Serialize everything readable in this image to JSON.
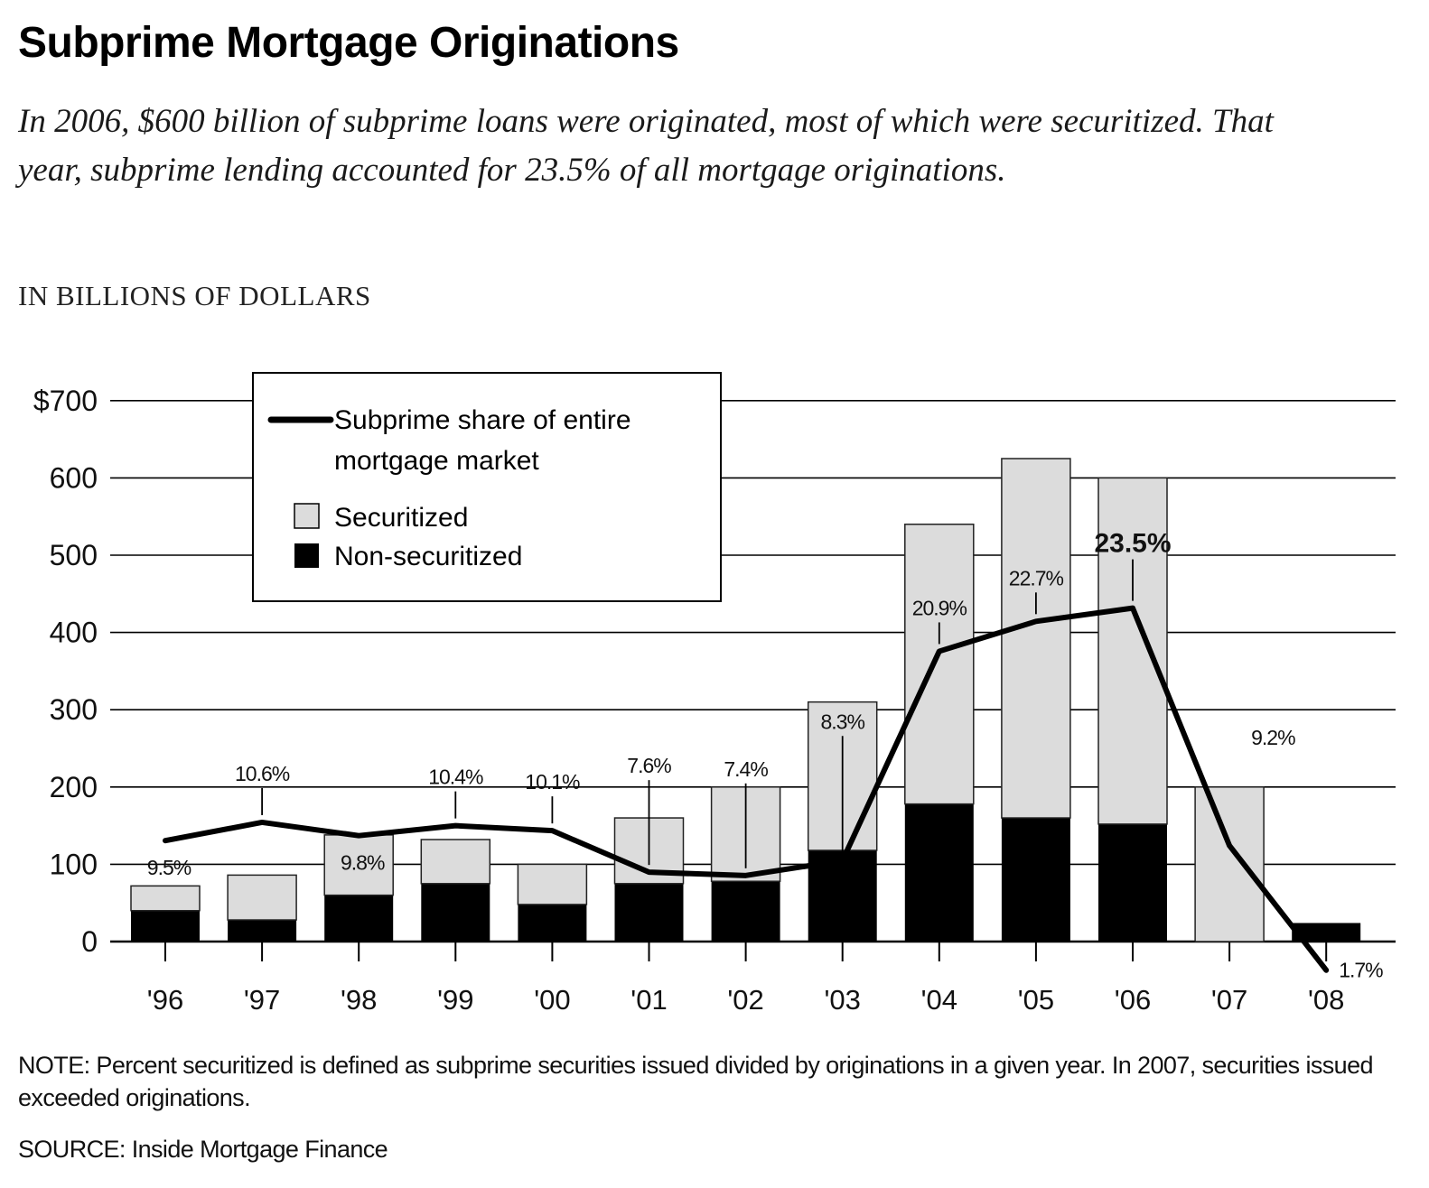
{
  "header": {
    "title": "Subprime Mortgage Originations",
    "subtitle": "In 2006, $600 billion of subprime loans were originated, most of which were securitized. That year, subprime lending accounted for 23.5% of all mortgage originations.",
    "unit_label": "IN BILLIONS OF DOLLARS"
  },
  "footer": {
    "note": "NOTE: Percent securitized is defined as subprime securities issued divided by originations in a given year. In 2007, securities issued exceeded originations.",
    "source": "SOURCE: Inside Mortgage Finance"
  },
  "legend": {
    "line_label_1": "Subprime share of entire",
    "line_label_2": "mortgage market",
    "securitized_label": "Securitized",
    "nonsecuritized_label": "Non-securitized"
  },
  "colors": {
    "securitized": "#dcdcdc",
    "non_securitized": "#000000",
    "line": "#000000",
    "grid": "#000000"
  },
  "chart_data": {
    "type": "bar",
    "stacked": true,
    "categories": [
      "'96",
      "'97",
      "'98",
      "'99",
      "'00",
      "'01",
      "'02",
      "'03",
      "'04",
      "'05",
      "'06",
      "'07",
      "'08"
    ],
    "series": [
      {
        "name": "Non-securitized",
        "values": [
          40,
          28,
          60,
          75,
          48,
          75,
          78,
          118,
          178,
          160,
          152,
          0,
          24
        ]
      },
      {
        "name": "Securitized",
        "values": [
          32,
          58,
          78,
          57,
          52,
          85,
          122,
          192,
          362,
          465,
          448,
          200,
          0
        ]
      }
    ],
    "line_series": {
      "name": "Subprime share of entire mortgage market",
      "values": [
        9.5,
        10.6,
        9.8,
        10.4,
        10.1,
        7.6,
        7.4,
        8.3,
        20.9,
        22.7,
        23.5,
        9.2,
        1.7
      ],
      "labels": [
        "9.5%",
        "10.6%",
        "9.8%",
        "10.4%",
        "10.1%",
        "7.6%",
        "7.4%",
        "8.3%",
        "20.9%",
        "22.7%",
        "23.5%",
        "9.2%",
        "1.7%"
      ],
      "highlight": "23.5%"
    },
    "yticks": [
      "0",
      "100",
      "200",
      "300",
      "400",
      "500",
      "600",
      "$700"
    ],
    "ylim": [
      0,
      700
    ],
    "title": "Subprime Mortgage Originations",
    "ylabel": "IN BILLIONS OF DOLLARS",
    "xlabel": "",
    "grid": true,
    "legend_position": "top-left"
  }
}
